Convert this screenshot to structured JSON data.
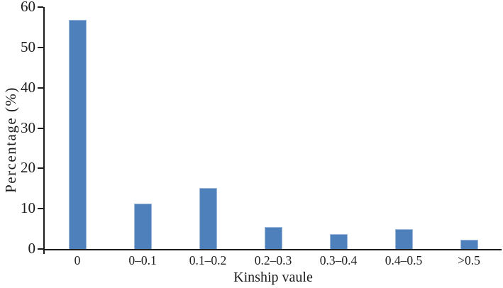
{
  "chart_data": {
    "type": "bar",
    "categories": [
      "0",
      "0–0.1",
      "0.1–0.2",
      "0.2–0.3",
      "0.3–0.4",
      "0.4–0.5",
      ">0.5"
    ],
    "values": [
      56.9,
      11.2,
      15.1,
      5.4,
      3.7,
      5.0,
      2.2
    ],
    "title": "",
    "xlabel": "Kinship vaule",
    "ylabel": "Percentage (%)",
    "ylim": [
      0,
      60
    ],
    "yticks": [
      0,
      10,
      20,
      30,
      40,
      50,
      60
    ],
    "grid": false,
    "legend": null,
    "bar_color": "#4E80BC",
    "bar_border_color": "#9CB9DC",
    "axis_color": "#1C1C1C",
    "background_color": "#FFFFFF"
  }
}
